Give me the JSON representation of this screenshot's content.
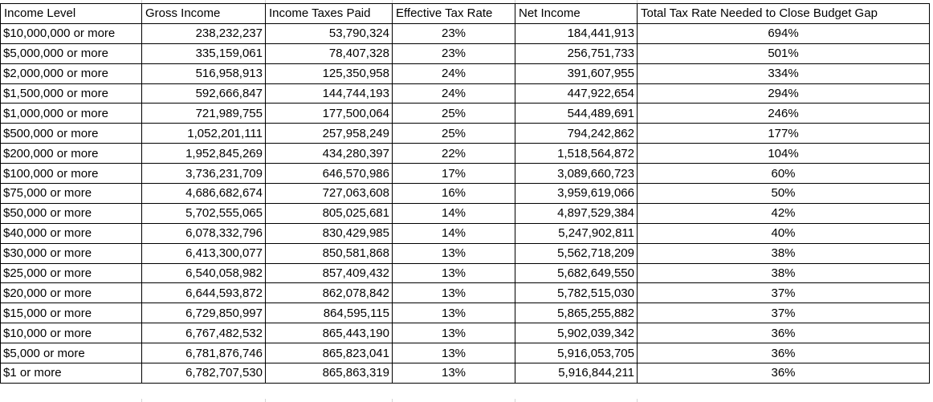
{
  "table": {
    "columns": [
      {
        "label": "Income Level",
        "align": "left"
      },
      {
        "label": "Gross Income",
        "align": "right"
      },
      {
        "label": "Income Taxes Paid",
        "align": "right"
      },
      {
        "label": "Effective Tax Rate",
        "align": "center"
      },
      {
        "label": "Net Income",
        "align": "right"
      },
      {
        "label": "Total Tax Rate Needed to Close Budget Gap",
        "align": "center"
      }
    ],
    "rows": [
      [
        "$10,000,000 or more",
        "238,232,237",
        "53,790,324",
        "23%",
        "184,441,913",
        "694%"
      ],
      [
        "$5,000,000 or more",
        "335,159,061",
        "78,407,328",
        "23%",
        "256,751,733",
        "501%"
      ],
      [
        "$2,000,000 or more",
        "516,958,913",
        "125,350,958",
        "24%",
        "391,607,955",
        "334%"
      ],
      [
        "$1,500,000 or more",
        "592,666,847",
        "144,744,193",
        "24%",
        "447,922,654",
        "294%"
      ],
      [
        "$1,000,000 or more",
        "721,989,755",
        "177,500,064",
        "25%",
        "544,489,691",
        "246%"
      ],
      [
        "$500,000 or more",
        "1,052,201,111",
        "257,958,249",
        "25%",
        "794,242,862",
        "177%"
      ],
      [
        "$200,000 or more",
        "1,952,845,269",
        "434,280,397",
        "22%",
        "1,518,564,872",
        "104%"
      ],
      [
        "$100,000 or more",
        "3,736,231,709",
        "646,570,986",
        "17%",
        "3,089,660,723",
        "60%"
      ],
      [
        "$75,000 or more",
        "4,686,682,674",
        "727,063,608",
        "16%",
        "3,959,619,066",
        "50%"
      ],
      [
        "$50,000 or more",
        "5,702,555,065",
        "805,025,681",
        "14%",
        "4,897,529,384",
        "42%"
      ],
      [
        "$40,000 or more",
        "6,078,332,796",
        "830,429,985",
        "14%",
        "5,247,902,811",
        "40%"
      ],
      [
        "$30,000 or more",
        "6,413,300,077",
        "850,581,868",
        "13%",
        "5,562,718,209",
        "38%"
      ],
      [
        "$25,000 or more",
        "6,540,058,982",
        "857,409,432",
        "13%",
        "5,682,649,550",
        "38%"
      ],
      [
        "$20,000 or more",
        "6,644,593,872",
        "862,078,842",
        "13%",
        "5,782,515,030",
        "37%"
      ],
      [
        "$15,000 or more",
        "6,729,850,997",
        "864,595,115",
        "13%",
        "5,865,255,882",
        "37%"
      ],
      [
        "$10,000 or more",
        "6,767,482,532",
        "865,443,190",
        "13%",
        "5,902,039,342",
        "36%"
      ],
      [
        "$5,000 or more",
        "6,781,876,746",
        "865,823,041",
        "13%",
        "5,916,053,705",
        "36%"
      ],
      [
        "$1 or more",
        "6,782,707,530",
        "865,863,319",
        "13%",
        "5,916,844,211",
        "36%"
      ]
    ]
  },
  "chart_data": {
    "type": "table",
    "columns": [
      "Income Level",
      "Gross Income",
      "Income Taxes Paid",
      "Effective Tax Rate",
      "Net Income",
      "Total Tax Rate Needed to Close Budget Gap"
    ],
    "rows": [
      [
        "$10,000,000 or more",
        238232237,
        53790324,
        "23%",
        184441913,
        "694%"
      ],
      [
        "$5,000,000 or more",
        335159061,
        78407328,
        "23%",
        256751733,
        "501%"
      ],
      [
        "$2,000,000 or more",
        516958913,
        125350958,
        "24%",
        391607955,
        "334%"
      ],
      [
        "$1,500,000 or more",
        592666847,
        144744193,
        "24%",
        447922654,
        "294%"
      ],
      [
        "$1,000,000 or more",
        721989755,
        177500064,
        "25%",
        544489691,
        "246%"
      ],
      [
        "$500,000 or more",
        1052201111,
        257958249,
        "25%",
        794242862,
        "177%"
      ],
      [
        "$200,000 or more",
        1952845269,
        434280397,
        "22%",
        1518564872,
        "104%"
      ],
      [
        "$100,000 or more",
        3736231709,
        646570986,
        "17%",
        3089660723,
        "60%"
      ],
      [
        "$75,000 or more",
        4686682674,
        727063608,
        "16%",
        3959619066,
        "50%"
      ],
      [
        "$50,000 or more",
        5702555065,
        805025681,
        "14%",
        4897529384,
        "42%"
      ],
      [
        "$40,000 or more",
        6078332796,
        830429985,
        "14%",
        5247902811,
        "40%"
      ],
      [
        "$30,000 or more",
        6413300077,
        850581868,
        "13%",
        5562718209,
        "38%"
      ],
      [
        "$25,000 or more",
        6540058982,
        857409432,
        "13%",
        5682649550,
        "38%"
      ],
      [
        "$20,000 or more",
        6644593872,
        862078842,
        "13%",
        5782515030,
        "37%"
      ],
      [
        "$15,000 or more",
        6729850997,
        864595115,
        "13%",
        5865255882,
        "37%"
      ],
      [
        "$10,000 or more",
        6767482532,
        865443190,
        "13%",
        5902039342,
        "36%"
      ],
      [
        "$5,000 or more",
        6781876746,
        865823041,
        "13%",
        5916053705,
        "36%"
      ],
      [
        "$1 or more",
        6782707530,
        865863319,
        "13%",
        5916844211,
        "36%"
      ]
    ]
  },
  "colors": {
    "border": "#000000",
    "gridline": "#d4d4d4",
    "text": "#000000",
    "background": "#ffffff"
  }
}
